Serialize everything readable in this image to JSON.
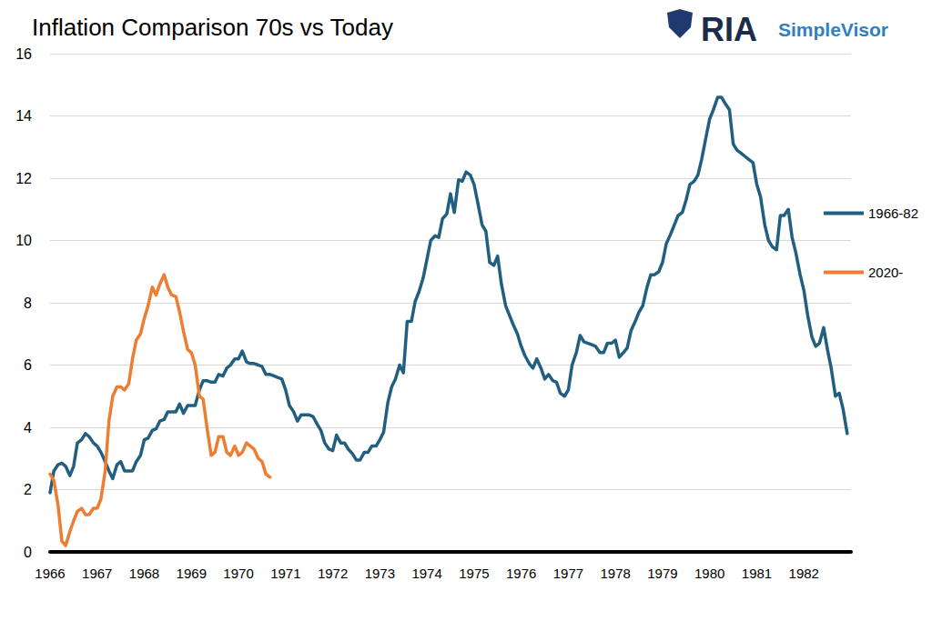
{
  "chart_data": {
    "type": "line",
    "title": "Inflation Comparison 70s vs Today",
    "annotations": [
      "RIA",
      "SimpleVisor"
    ],
    "x": [
      1966,
      1966.08,
      1966.17,
      1966.25,
      1966.33,
      1966.42,
      1966.5,
      1966.58,
      1966.67,
      1966.75,
      1966.83,
      1966.92,
      1967,
      1967.08,
      1967.17,
      1967.25,
      1967.33,
      1967.42,
      1967.5,
      1967.58,
      1967.67,
      1967.75,
      1967.83,
      1967.92,
      1968,
      1968.08,
      1968.17,
      1968.25,
      1968.33,
      1968.42,
      1968.5,
      1968.58,
      1968.67,
      1968.75,
      1968.83,
      1968.92,
      1969,
      1969.08,
      1969.17,
      1969.25,
      1969.33,
      1969.42,
      1969.5,
      1969.58,
      1969.67,
      1969.75,
      1969.83,
      1969.92,
      1970,
      1970.08,
      1970.17,
      1970.25,
      1970.33,
      1970.42,
      1970.5,
      1970.58,
      1970.67,
      1970.75,
      1970.83,
      1970.92,
      1971,
      1971.08,
      1971.17,
      1971.25,
      1971.33,
      1971.42,
      1971.5,
      1971.58,
      1971.67,
      1971.75,
      1971.83,
      1971.92,
      1972,
      1972.08,
      1972.17,
      1972.25,
      1972.33,
      1972.42,
      1972.5,
      1972.58,
      1972.67,
      1972.75,
      1972.83,
      1972.92,
      1973,
      1973.08,
      1973.17,
      1973.25,
      1973.33,
      1973.42,
      1973.5,
      1973.58,
      1973.67,
      1973.75,
      1973.83,
      1973.92,
      1974,
      1974.08,
      1974.17,
      1974.25,
      1974.33,
      1974.42,
      1974.5,
      1974.58,
      1974.67,
      1974.75,
      1974.83,
      1974.92,
      1975,
      1975.08,
      1975.17,
      1975.25,
      1975.33,
      1975.42,
      1975.5,
      1975.58,
      1975.67,
      1975.75,
      1975.83,
      1975.92,
      1976,
      1976.08,
      1976.17,
      1976.25,
      1976.33,
      1976.42,
      1976.5,
      1976.58,
      1976.67,
      1976.75,
      1976.83,
      1976.92,
      1977,
      1977.08,
      1977.17,
      1977.25,
      1977.33,
      1977.42,
      1977.5,
      1977.58,
      1977.67,
      1977.75,
      1977.83,
      1977.92,
      1978,
      1978.08,
      1978.17,
      1978.25,
      1978.33,
      1978.42,
      1978.5,
      1978.58,
      1978.67,
      1978.75,
      1978.83,
      1978.92,
      1979,
      1979.08,
      1979.17,
      1979.25,
      1979.33,
      1979.42,
      1979.5,
      1979.58,
      1979.67,
      1979.75,
      1979.83,
      1979.92,
      1980,
      1980.08,
      1980.17,
      1980.25,
      1980.33,
      1980.42,
      1980.5,
      1980.58,
      1980.67,
      1980.75,
      1980.83,
      1980.92,
      1981,
      1981.08,
      1981.17,
      1981.25,
      1981.33,
      1981.42,
      1981.5,
      1981.58,
      1981.67,
      1981.75,
      1981.83,
      1981.92,
      1982,
      1982.08,
      1982.17,
      1982.25,
      1982.33,
      1982.42,
      1982.5,
      1982.58,
      1982.67,
      1982.75,
      1982.83,
      1982.92
    ],
    "series": [
      {
        "name": "1966-82",
        "color": "#215f80",
        "values": [
          1.9,
          2.6,
          2.8,
          2.85,
          2.75,
          2.45,
          2.75,
          3.5,
          3.6,
          3.8,
          3.7,
          3.5,
          3.4,
          3.2,
          2.9,
          2.6,
          2.35,
          2.8,
          2.9,
          2.6,
          2.6,
          2.6,
          2.9,
          3.1,
          3.6,
          3.65,
          3.9,
          3.95,
          4.2,
          4.25,
          4.5,
          4.5,
          4.5,
          4.75,
          4.45,
          4.7,
          4.7,
          4.7,
          5.2,
          5.5,
          5.5,
          5.45,
          5.45,
          5.7,
          5.65,
          5.9,
          6.0,
          6.2,
          6.2,
          6.45,
          6.1,
          6.05,
          6.05,
          6.0,
          5.95,
          5.7,
          5.7,
          5.65,
          5.6,
          5.55,
          5.2,
          4.7,
          4.5,
          4.2,
          4.4,
          4.4,
          4.4,
          4.35,
          4.1,
          3.9,
          3.5,
          3.3,
          3.25,
          3.75,
          3.5,
          3.5,
          3.3,
          3.15,
          2.95,
          2.95,
          3.2,
          3.2,
          3.4,
          3.4,
          3.6,
          3.85,
          4.8,
          5.3,
          5.55,
          6.0,
          5.75,
          7.4,
          7.4,
          8.05,
          8.35,
          8.8,
          9.4,
          10.0,
          10.15,
          10.1,
          10.7,
          10.85,
          11.5,
          10.9,
          11.95,
          11.9,
          12.2,
          12.1,
          11.8,
          11.2,
          10.5,
          10.3,
          9.3,
          9.2,
          9.5,
          8.6,
          7.9,
          7.6,
          7.3,
          7.0,
          6.6,
          6.3,
          6.05,
          5.9,
          6.2,
          5.9,
          5.55,
          5.7,
          5.5,
          5.45,
          5.1,
          5.0,
          5.2,
          6.0,
          6.4,
          6.95,
          6.75,
          6.7,
          6.65,
          6.6,
          6.4,
          6.4,
          6.7,
          6.7,
          6.8,
          6.25,
          6.4,
          6.55,
          7.1,
          7.4,
          7.7,
          7.9,
          8.5,
          8.9,
          8.9,
          9.0,
          9.3,
          9.9,
          10.2,
          10.5,
          10.8,
          10.9,
          11.3,
          11.8,
          11.9,
          12.1,
          12.6,
          13.3,
          13.9,
          14.2,
          14.6,
          14.6,
          14.4,
          14.2,
          13.1,
          12.9,
          12.8,
          12.7,
          12.6,
          12.5,
          11.8,
          11.4,
          10.5,
          10.0,
          9.8,
          9.7,
          10.8,
          10.8,
          11.0,
          10.1,
          9.6,
          8.9,
          8.4,
          7.6,
          6.9,
          6.6,
          6.7,
          7.2,
          6.5,
          5.9,
          5.0,
          5.1,
          4.6,
          3.8
        ]
      },
      {
        "name": "2020-",
        "color": "#ed7d31",
        "values": [
          2.5,
          2.3,
          1.5,
          0.35,
          0.2,
          0.65,
          1.0,
          1.3,
          1.4,
          1.2,
          1.2,
          1.4,
          1.4,
          1.7,
          2.6,
          4.2,
          5.0,
          5.3,
          5.3,
          5.2,
          5.4,
          6.2,
          6.8,
          7.0,
          7.5,
          7.9,
          8.5,
          8.25,
          8.6,
          8.9,
          8.5,
          8.25,
          8.2,
          7.7,
          7.1,
          6.5,
          6.4,
          6.0,
          5.0,
          4.9,
          4.0,
          3.1,
          3.2,
          3.7,
          3.7,
          3.2,
          3.1,
          3.4,
          3.1,
          3.2,
          3.5,
          3.4,
          3.3,
          3.0,
          2.9,
          2.5,
          2.4,
          null,
          null,
          null,
          null,
          null,
          null,
          null,
          null,
          null,
          null,
          null,
          null,
          null,
          null,
          null,
          null,
          null,
          null,
          null,
          null,
          null,
          null,
          null,
          null,
          null,
          null,
          null,
          null,
          null,
          null,
          null,
          null,
          null,
          null,
          null,
          null,
          null,
          null,
          null,
          null,
          null,
          null,
          null,
          null,
          null,
          null,
          null,
          null,
          null,
          null,
          null,
          null,
          null,
          null,
          null,
          null,
          null,
          null,
          null,
          null,
          null,
          null,
          null,
          null,
          null,
          null,
          null,
          null,
          null,
          null,
          null,
          null,
          null,
          null,
          null,
          null,
          null,
          null,
          null,
          null,
          null,
          null,
          null,
          null,
          null,
          null,
          null,
          null,
          null,
          null,
          null,
          null,
          null,
          null,
          null,
          null,
          null,
          null,
          null,
          null,
          null,
          null,
          null,
          null,
          null,
          null,
          null,
          null,
          null,
          null,
          null,
          null,
          null,
          null,
          null,
          null,
          null,
          null,
          null,
          null,
          null,
          null,
          null,
          null,
          null,
          null,
          null,
          null,
          null,
          null,
          null,
          null,
          null,
          null,
          null,
          null,
          null,
          null,
          null,
          null,
          null,
          null,
          null,
          null,
          null,
          null,
          null
        ]
      }
    ],
    "xlim": [
      1966,
      1983
    ],
    "xticks": [
      1966,
      1967,
      1968,
      1969,
      1970,
      1971,
      1972,
      1973,
      1974,
      1975,
      1976,
      1977,
      1978,
      1979,
      1980,
      1981,
      1982
    ],
    "ylim": [
      0,
      16
    ],
    "yticks": [
      0,
      2,
      4,
      6,
      8,
      10,
      12,
      14,
      16
    ],
    "grid": true,
    "legend": "right"
  }
}
